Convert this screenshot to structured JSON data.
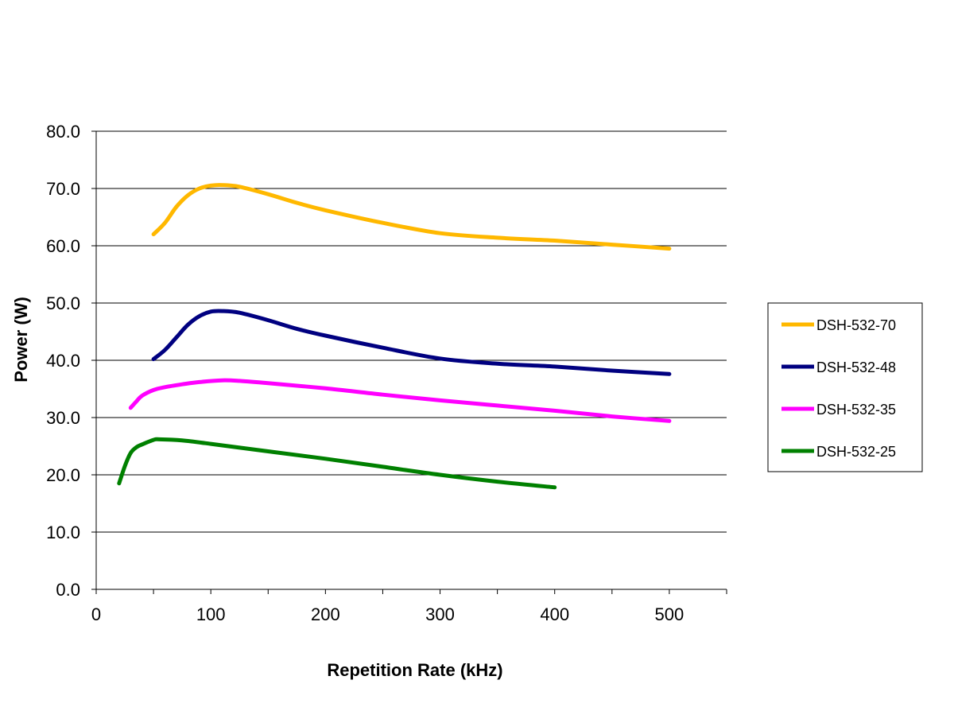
{
  "chart_data": {
    "type": "line",
    "xlabel": "Repetition Rate (kHz)",
    "ylabel": "Power (W)",
    "xlim": [
      0,
      550
    ],
    "ylim": [
      0,
      80
    ],
    "x_ticks": [
      "0",
      "100",
      "200",
      "300",
      "400",
      "500"
    ],
    "y_ticks": [
      "0.0",
      "10.0",
      "20.0",
      "30.0",
      "40.0",
      "50.0",
      "60.0",
      "70.0",
      "80.0"
    ],
    "grid": "horizontal",
    "legend_position": "right",
    "series": [
      {
        "name": "DSH-532-70",
        "color": "#FFB800",
        "points": [
          [
            50,
            62.0
          ],
          [
            60,
            64.0
          ],
          [
            70,
            66.8
          ],
          [
            80,
            68.8
          ],
          [
            90,
            70.0
          ],
          [
            100,
            70.5
          ],
          [
            110,
            70.6
          ],
          [
            125,
            70.3
          ],
          [
            150,
            69.0
          ],
          [
            175,
            67.5
          ],
          [
            200,
            66.2
          ],
          [
            250,
            64.0
          ],
          [
            300,
            62.2
          ],
          [
            350,
            61.4
          ],
          [
            400,
            60.9
          ],
          [
            450,
            60.2
          ],
          [
            500,
            59.5
          ]
        ]
      },
      {
        "name": "DSH-532-48",
        "color": "#000080",
        "points": [
          [
            50,
            40.2
          ],
          [
            60,
            41.8
          ],
          [
            70,
            44.0
          ],
          [
            80,
            46.2
          ],
          [
            90,
            47.7
          ],
          [
            100,
            48.5
          ],
          [
            110,
            48.6
          ],
          [
            125,
            48.3
          ],
          [
            150,
            47.0
          ],
          [
            175,
            45.5
          ],
          [
            200,
            44.3
          ],
          [
            250,
            42.2
          ],
          [
            300,
            40.3
          ],
          [
            350,
            39.4
          ],
          [
            400,
            38.9
          ],
          [
            450,
            38.2
          ],
          [
            500,
            37.6
          ]
        ]
      },
      {
        "name": "DSH-532-35",
        "color": "#FF00FF",
        "points": [
          [
            30,
            31.7
          ],
          [
            35,
            32.8
          ],
          [
            40,
            33.8
          ],
          [
            50,
            34.8
          ],
          [
            60,
            35.3
          ],
          [
            75,
            35.8
          ],
          [
            90,
            36.2
          ],
          [
            110,
            36.5
          ],
          [
            125,
            36.4
          ],
          [
            150,
            36.0
          ],
          [
            200,
            35.1
          ],
          [
            250,
            34.0
          ],
          [
            300,
            33.0
          ],
          [
            350,
            32.1
          ],
          [
            400,
            31.2
          ],
          [
            450,
            30.2
          ],
          [
            500,
            29.4
          ]
        ]
      },
      {
        "name": "DSH-532-25",
        "color": "#008000",
        "points": [
          [
            20,
            18.5
          ],
          [
            25,
            21.5
          ],
          [
            30,
            23.8
          ],
          [
            35,
            24.8
          ],
          [
            40,
            25.3
          ],
          [
            50,
            26.1
          ],
          [
            55,
            26.2
          ],
          [
            75,
            26.0
          ],
          [
            100,
            25.4
          ],
          [
            150,
            24.1
          ],
          [
            200,
            22.8
          ],
          [
            250,
            21.4
          ],
          [
            300,
            20.0
          ],
          [
            350,
            18.8
          ],
          [
            400,
            17.8
          ]
        ]
      }
    ]
  }
}
